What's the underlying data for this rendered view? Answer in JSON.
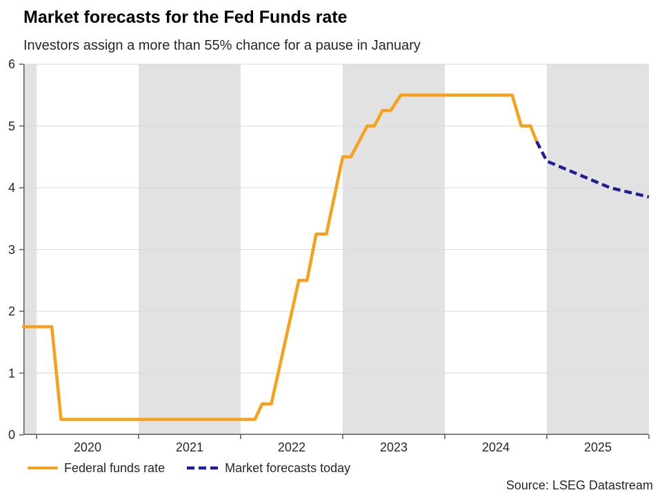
{
  "colors": {
    "fed_funds_line": "#F9A01B",
    "forecast_line": "#1E1E96",
    "shaded_band": "#E2E2E2",
    "gridline": "#D9D9D9",
    "axis": "#595959",
    "text": "#262626",
    "title": "#000000"
  },
  "chart_data": {
    "type": "line",
    "title": "Market forecasts for the Fed Funds rate",
    "subtitle": "Investors assign a more than 55% chance for a pause in January",
    "source": "Source: LSEG Datastream",
    "xlabel": "",
    "ylabel": "",
    "xlim": [
      2019.872,
      2026.0
    ],
    "ylim": [
      0,
      6
    ],
    "yticks": [
      0,
      1,
      2,
      3,
      4,
      5,
      6
    ],
    "ytick_labels": [
      "0",
      "1",
      "2",
      "3",
      "4",
      "5",
      "6"
    ],
    "xticks": [
      2020,
      2021,
      2022,
      2023,
      2024,
      2025,
      2026
    ],
    "xtick_labels": [
      {
        "label": "2020",
        "center": 2020.5
      },
      {
        "label": "2021",
        "center": 2021.5
      },
      {
        "label": "2022",
        "center": 2022.5
      },
      {
        "label": "2023",
        "center": 2023.5
      },
      {
        "label": "2024",
        "center": 2024.5
      },
      {
        "label": "2025",
        "center": 2025.5
      }
    ],
    "shaded_year_bands": [
      [
        2019.872,
        2020.0
      ],
      [
        2021.0,
        2022.0
      ],
      [
        2023.0,
        2024.0
      ],
      [
        2025.0,
        2026.0
      ]
    ],
    "grid": "horizontal-only",
    "legend_position": "bottom-left",
    "series": [
      {
        "name": "Federal funds rate",
        "style": "solid",
        "color": "#F9A01B",
        "points": [
          [
            2019.872,
            1.75
          ],
          [
            2020.15,
            1.75
          ],
          [
            2020.24,
            0.25
          ],
          [
            2022.14,
            0.25
          ],
          [
            2022.21,
            0.5
          ],
          [
            2022.3,
            0.5
          ],
          [
            2022.57,
            2.5
          ],
          [
            2022.65,
            2.5
          ],
          [
            2022.74,
            3.25
          ],
          [
            2022.84,
            3.25
          ],
          [
            2023.0,
            4.5
          ],
          [
            2023.08,
            4.5
          ],
          [
            2023.24,
            5.0
          ],
          [
            2023.31,
            5.0
          ],
          [
            2023.39,
            5.25
          ],
          [
            2023.47,
            5.25
          ],
          [
            2023.57,
            5.5
          ],
          [
            2024.66,
            5.5
          ],
          [
            2024.75,
            5.0
          ],
          [
            2024.84,
            5.0
          ],
          [
            2024.9,
            4.75
          ]
        ]
      },
      {
        "name": "Market forecasts today",
        "style": "dashed",
        "color": "#1E1E96",
        "points": [
          [
            2024.9,
            4.75
          ],
          [
            2025.0,
            4.43
          ],
          [
            2025.62,
            4.0
          ],
          [
            2026.0,
            3.85
          ]
        ]
      }
    ]
  }
}
